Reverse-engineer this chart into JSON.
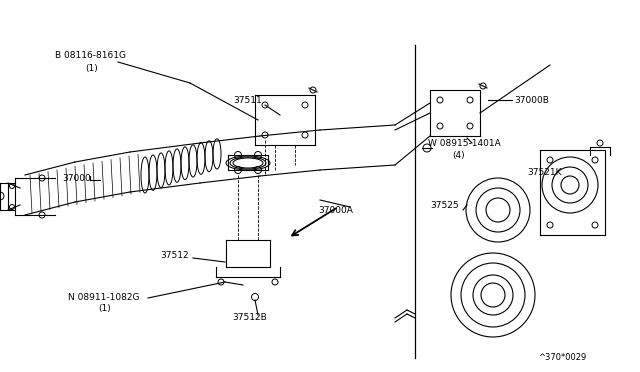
{
  "bg_color": "#ffffff",
  "line_color": "#000000",
  "fig_width": 6.4,
  "fig_height": 3.72,
  "dpi": 100,
  "labels": {
    "B_bolt": "B 08116-8161G",
    "B_bolt_sub": "(1)",
    "37511": "37511",
    "37000": "37000",
    "37512": "37512",
    "N_nut": "N 08911-1082G",
    "N_nut_sub": "(1)",
    "37512B": "37512B",
    "37000A": "37000A",
    "37000B": "37000B",
    "W_washer": "W 08915-1401A",
    "W_washer_sub": "(4)",
    "37521K": "37521K",
    "37525": "37525",
    "ref_code": "^370*0029"
  }
}
